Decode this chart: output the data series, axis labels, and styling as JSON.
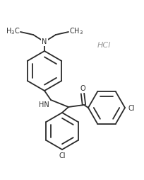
{
  "bg_color": "#ffffff",
  "line_color": "#2a2a2a",
  "hcl_color": "#999999",
  "line_width": 1.3,
  "font_size": 7.0,
  "hcl_font_size": 8.0,
  "figsize": [
    2.04,
    2.54
  ],
  "dpi": 100,
  "xlim": [
    0,
    204
  ],
  "ylim": [
    0,
    254
  ]
}
